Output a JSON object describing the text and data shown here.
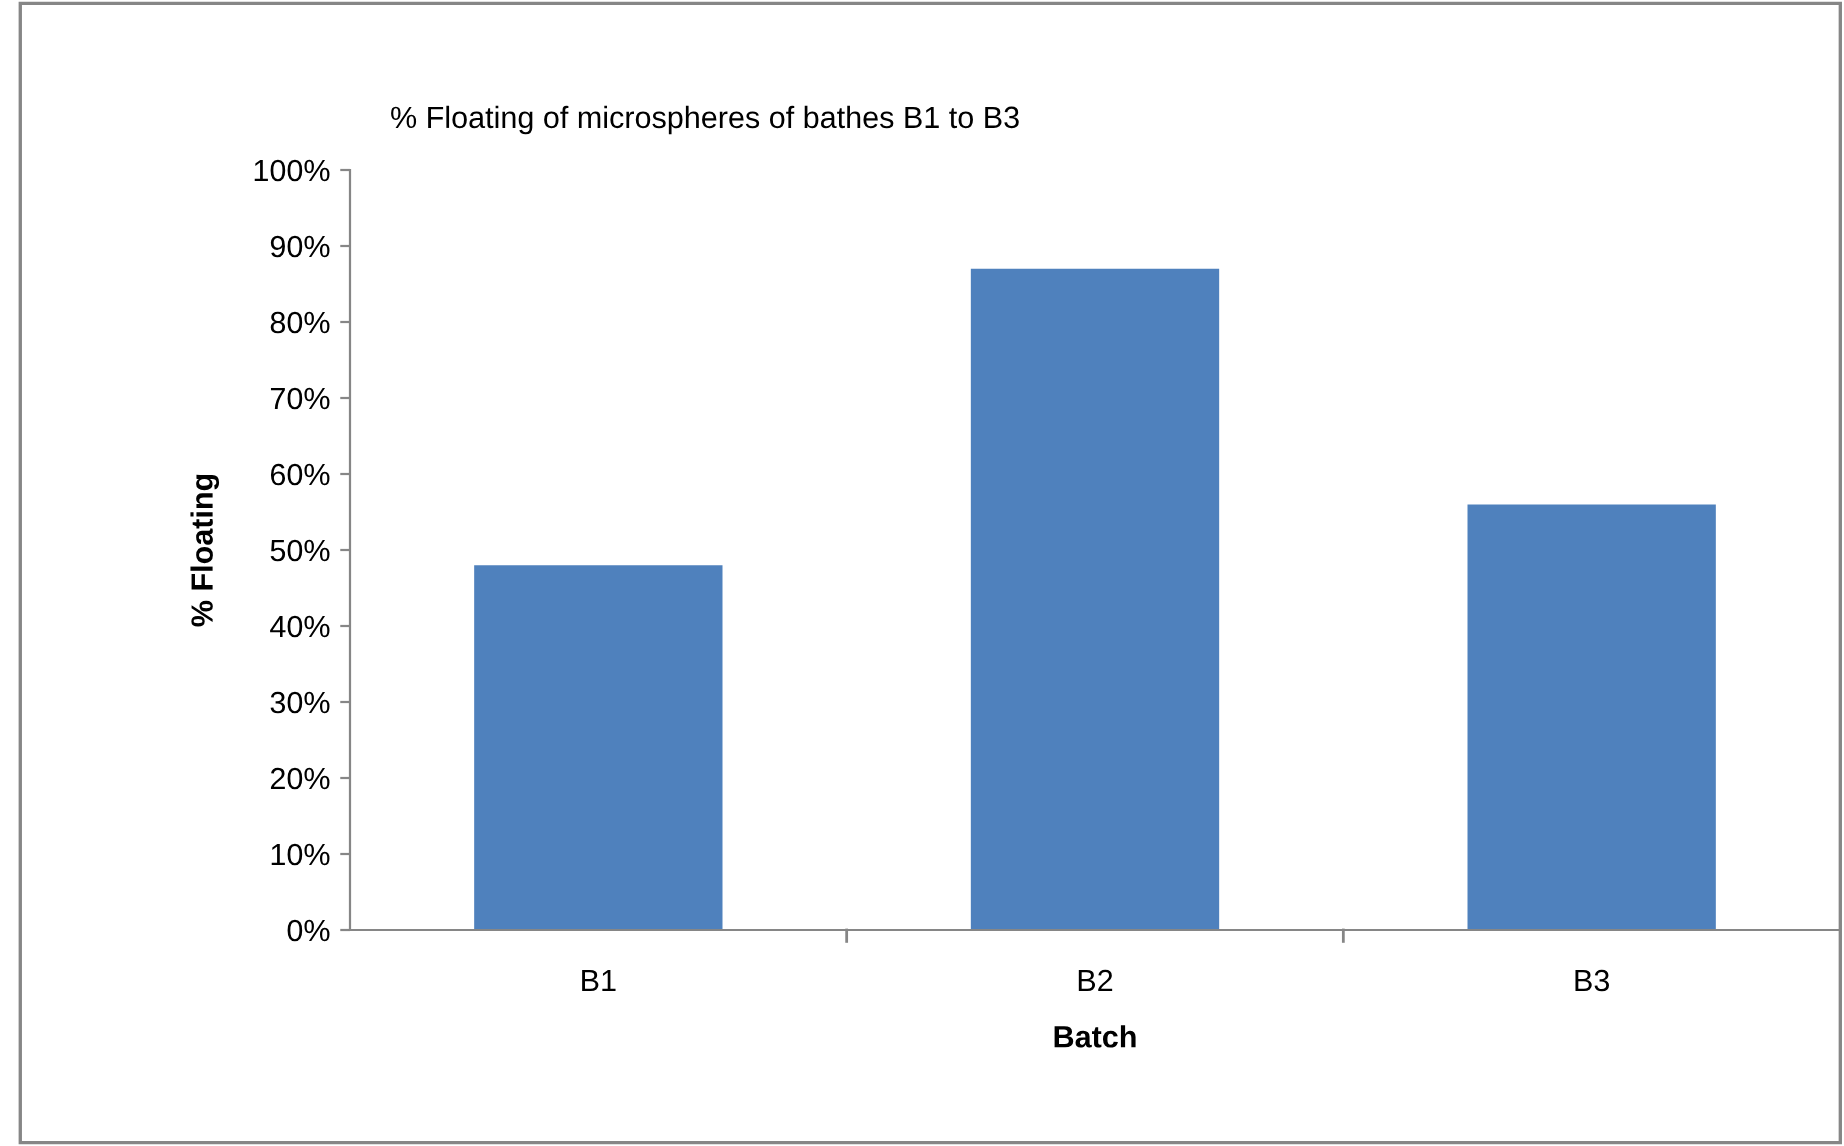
{
  "chart_data": {
    "type": "bar",
    "title": "% Floating of microspheres of bathes B1 to B3",
    "xlabel": "Batch",
    "ylabel": "% Floating",
    "categories": [
      "B1",
      "B2",
      "B3"
    ],
    "values": [
      48,
      87,
      56
    ],
    "color": "#4f81bd",
    "ylim": [
      0,
      100
    ],
    "yticks": [
      {
        "value": 0,
        "label": "0%"
      },
      {
        "value": 10,
        "label": "10%"
      },
      {
        "value": 20,
        "label": "20%"
      },
      {
        "value": 30,
        "label": "30%"
      },
      {
        "value": 40,
        "label": "40%"
      },
      {
        "value": 50,
        "label": "50%"
      },
      {
        "value": 60,
        "label": "60%"
      },
      {
        "value": 70,
        "label": "70%"
      },
      {
        "value": 80,
        "label": "80%"
      },
      {
        "value": 90,
        "label": "90%"
      },
      {
        "value": 100,
        "label": "100%"
      }
    ],
    "grid": false
  }
}
